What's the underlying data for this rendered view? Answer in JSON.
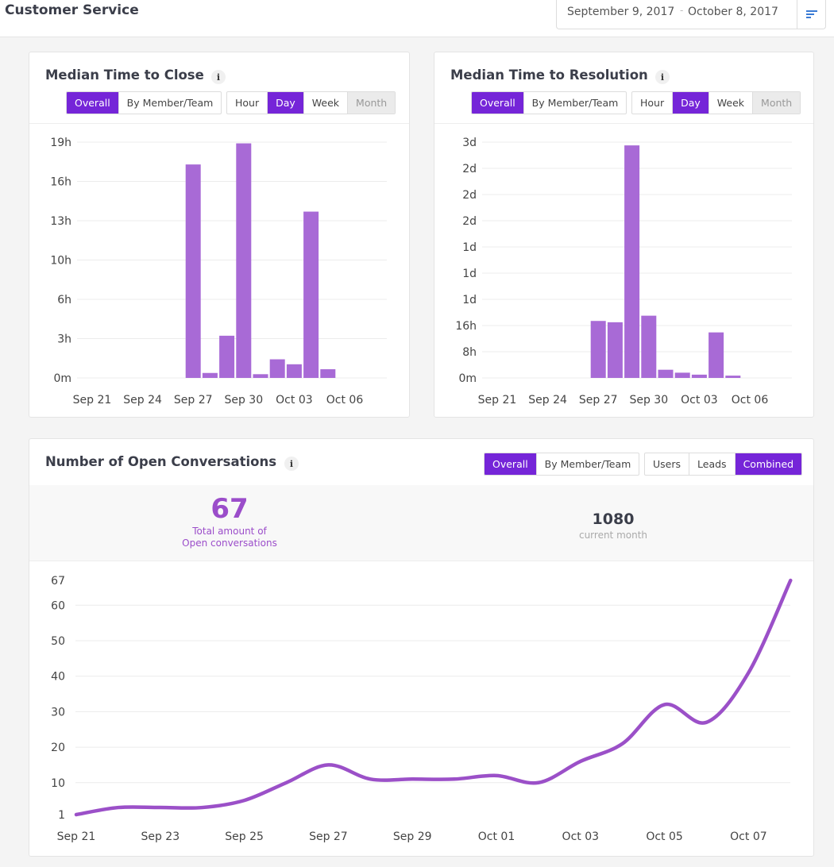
{
  "header": {
    "title": "Customer Service",
    "date_start": "September 9, 2017",
    "date_sep": "-",
    "date_end": "October 8, 2017",
    "menu_icon": "filter-lines-icon"
  },
  "colors": {
    "accent": "#7525d8",
    "bar": "#a86ad6",
    "line": "#9b50c8"
  },
  "close_card": {
    "title": "Median Time to Close",
    "info": "i",
    "view_buttons": [
      {
        "label": "Overall",
        "state": "active"
      },
      {
        "label": "By Member/Team",
        "state": "normal"
      }
    ],
    "period_buttons": [
      {
        "label": "Hour",
        "state": "normal"
      },
      {
        "label": "Day",
        "state": "active"
      },
      {
        "label": "Week",
        "state": "normal"
      },
      {
        "label": "Month",
        "state": "disabled"
      }
    ]
  },
  "resolution_card": {
    "title": "Median Time to Resolution",
    "info": "i",
    "view_buttons": [
      {
        "label": "Overall",
        "state": "active"
      },
      {
        "label": "By Member/Team",
        "state": "normal"
      }
    ],
    "period_buttons": [
      {
        "label": "Hour",
        "state": "normal"
      },
      {
        "label": "Day",
        "state": "active"
      },
      {
        "label": "Week",
        "state": "normal"
      },
      {
        "label": "Month",
        "state": "disabled"
      }
    ]
  },
  "open_card": {
    "title": "Number of Open Conversations",
    "info": "i",
    "view_buttons": [
      {
        "label": "Overall",
        "state": "active"
      },
      {
        "label": "By Member/Team",
        "state": "normal"
      }
    ],
    "type_buttons": [
      {
        "label": "Users",
        "state": "normal"
      },
      {
        "label": "Leads",
        "state": "normal"
      },
      {
        "label": "Combined",
        "state": "active"
      }
    ],
    "total_value": "67",
    "total_caption_1": "Total amount of",
    "total_caption_2": "Open conversations",
    "month_value": "1080",
    "month_caption": "current month"
  },
  "chart_data": [
    {
      "type": "bar",
      "y_unit": "hours",
      "ylim": [
        0,
        19
      ],
      "x_start": "2017-09-18",
      "categories": [
        "Sep 27",
        "Sep 28",
        "Sep 29",
        "Sep 30",
        "Oct 01",
        "Oct 02",
        "Oct 03",
        "Oct 04",
        "Oct 05"
      ],
      "values": [
        17.2,
        0.4,
        3.4,
        18.9,
        0.3,
        1.5,
        1.1,
        13.4,
        0.7
      ],
      "x_ticks": [
        "Sep 21",
        "Sep 24",
        "Sep 27",
        "Sep 30",
        "Oct 03",
        "Oct 06"
      ],
      "y_ticks": [
        "0m",
        "3h",
        "6h",
        "10h",
        "13h",
        "16h",
        "19h"
      ],
      "grid": true
    },
    {
      "type": "bar",
      "y_unit": "hours",
      "ylim": [
        0,
        72
      ],
      "categories": [
        "Sep 27",
        "Sep 28",
        "Sep 29",
        "Sep 30",
        "Oct 01",
        "Oct 02",
        "Oct 03",
        "Oct 04",
        "Oct 05"
      ],
      "values": [
        17.4,
        17.0,
        71.0,
        19.0,
        2.5,
        1.6,
        1.0,
        13.9,
        0.7
      ],
      "x_ticks": [
        "Sep 21",
        "Sep 24",
        "Sep 27",
        "Sep 30",
        "Oct 03",
        "Oct 06"
      ],
      "y_ticks": [
        "0m",
        "8h",
        "16h",
        "1d",
        "1d",
        "1d",
        "2d",
        "2d",
        "2d",
        "3d"
      ],
      "grid": true
    },
    {
      "type": "line",
      "x": [
        "Sep 21",
        "Sep 22",
        "Sep 23",
        "Sep 24",
        "Sep 25",
        "Sep 26",
        "Sep 27",
        "Sep 28",
        "Sep 29",
        "Sep 30",
        "Oct 01",
        "Oct 02",
        "Oct 03",
        "Oct 04",
        "Oct 05",
        "Oct 06",
        "Oct 07",
        "Oct 08"
      ],
      "values": [
        1,
        3,
        3,
        3,
        5,
        10,
        15,
        11,
        11,
        11,
        12,
        10,
        16,
        21,
        32,
        27,
        41,
        67
      ],
      "ylim": [
        1,
        67
      ],
      "x_ticks": [
        "Sep 21",
        "Sep 23",
        "Sep 25",
        "Sep 27",
        "Sep 29",
        "Oct 01",
        "Oct 03",
        "Oct 05",
        "Oct 07"
      ],
      "y_ticks": [
        "1",
        "10",
        "20",
        "30",
        "40",
        "50",
        "60",
        "67"
      ],
      "grid": true
    }
  ]
}
